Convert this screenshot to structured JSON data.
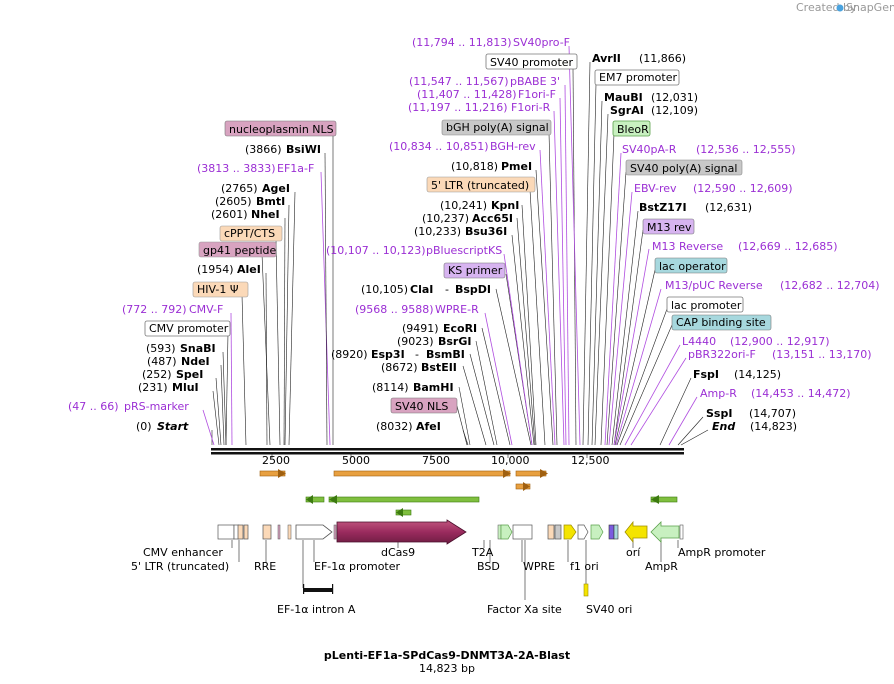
{
  "branding": {
    "credit": "Created by",
    "brand": "SnapGene"
  },
  "plasmid": {
    "name": "pLenti-EF1a-SPdCas9-DNMT3A-2A-Blast",
    "length": "14,823 bp"
  },
  "axis": {
    "ticks": [
      "2500",
      "5000",
      "7500",
      "10,000",
      "12,500"
    ]
  },
  "enzymes_left": [
    {
      "pos": "(0)",
      "name": "Start"
    },
    {
      "pos": "(231)",
      "name": "MluI"
    },
    {
      "pos": "(252)",
      "name": "SpeI"
    },
    {
      "pos": "(487)",
      "name": "NdeI"
    },
    {
      "pos": "(593)",
      "name": "SnaBI"
    },
    {
      "pos": "(1954)",
      "name": "AleI"
    },
    {
      "pos": "(2601)",
      "name": "NheI"
    },
    {
      "pos": "(2605)",
      "name": "BmtI"
    },
    {
      "pos": "(2765)",
      "name": "AgeI"
    },
    {
      "pos": "(3866)",
      "name": "BsiWI"
    }
  ],
  "enzymes_mid": [
    {
      "pos": "(8032)",
      "name": "AfeI"
    },
    {
      "pos": "(8114)",
      "name": "BamHI"
    },
    {
      "pos": "(8672)",
      "name": "BstEII"
    },
    {
      "pos": "(8920)",
      "name": "Esp3I",
      "name2": "BsmBI"
    },
    {
      "pos": "(9023)",
      "name": "BsrGI"
    },
    {
      "pos": "(9491)",
      "name": "EcoRI"
    },
    {
      "pos": "(10,105)",
      "name": "ClaI",
      "name2": "BspDI"
    },
    {
      "pos": "(10,233)",
      "name": "Bsu36I"
    },
    {
      "pos": "(10,237)",
      "name": "Acc65I"
    },
    {
      "pos": "(10,241)",
      "name": "KpnI"
    },
    {
      "pos": "(10,818)",
      "name": "PmeI"
    }
  ],
  "enzymes_right": [
    {
      "pos": "(11,866)",
      "name": "AvrII"
    },
    {
      "pos": "(12,031)",
      "name": "MauBI"
    },
    {
      "pos": "(12,109)",
      "name": "SgrAI"
    },
    {
      "pos": "(12,631)",
      "name": "BstZ17I"
    },
    {
      "pos": "(14,125)",
      "name": "FspI"
    },
    {
      "pos": "(14,707)",
      "name": "SspI"
    },
    {
      "pos": "(14,823)",
      "name": "End"
    }
  ],
  "primers": [
    {
      "range": "(47 .. 66)",
      "name": "pRS-marker"
    },
    {
      "range": "(772 .. 792)",
      "name": "CMV-F"
    },
    {
      "range": "(3813 .. 3833)",
      "name": "EF1a-F"
    },
    {
      "range": "(9568 .. 9588)",
      "name": "WPRE-R"
    },
    {
      "range": "(10,107 .. 10,123)",
      "name": "pBluescriptKS"
    },
    {
      "range": "(10,834 .. 10,851)",
      "name": "BGH-rev"
    },
    {
      "range": "(11,197 .. 11,216)",
      "name": "F1ori-R"
    },
    {
      "range": "(11,407 .. 11,428)",
      "name": "F1ori-F"
    },
    {
      "range": "(11,547 .. 11,567)",
      "name": "pBABE 3'"
    },
    {
      "range": "(11,794 .. 11,813)",
      "name": "SV40pro-F"
    },
    {
      "range": "(12,536 .. 12,555)",
      "name": "SV40pA-R"
    },
    {
      "range": "(12,590 .. 12,609)",
      "name": "EBV-rev"
    },
    {
      "range": "(12,669 .. 12,685)",
      "name": "M13 Reverse"
    },
    {
      "range": "(12,682 .. 12,704)",
      "name": "M13/pUC Reverse"
    },
    {
      "range": "(12,900 .. 12,917)",
      "name": "L4440"
    },
    {
      "range": "(13,151 .. 13,170)",
      "name": "pBR322ori-F"
    },
    {
      "range": "(14,453 .. 14,472)",
      "name": "Amp-R"
    }
  ],
  "boxed_features": {
    "nucleoplasmin_nls": "nucleoplasmin NLS",
    "cppt_cts": "cPPT/CTS",
    "gp41_peptide": "gp41 peptide",
    "hiv1_psi": "HIV-1 Ψ",
    "cmv_promoter": "CMV promoter",
    "sv40_promoter": "SV40 promoter",
    "bgh_polya": "bGH poly(A) signal",
    "ltr_truncated": "5' LTR (truncated)",
    "ks_primer": "KS primer",
    "sv40_nls": "SV40 NLS",
    "em7_promoter": "EM7 promoter",
    "bleor": "BleoR",
    "sv40_polya": "SV40 poly(A) signal",
    "m13_rev": "M13 rev",
    "lac_operator": "lac operator",
    "lac_promoter": "lac promoter",
    "cap_site": "CAP binding site"
  },
  "feature_labels": {
    "row1": [
      "CMV enhancer",
      "dCas9",
      "T2A",
      "orí",
      "AmpR promoter"
    ],
    "row2": [
      "5' LTR (truncated)",
      "RRE",
      "EF-1α promoter",
      "BSD",
      "WPRE",
      "f1 ori",
      "AmpR"
    ],
    "row3": [
      "EF-1α intron A",
      "Factor Xa site",
      "SV40 ori"
    ]
  },
  "colors": {
    "primer": "#9b2fd4",
    "dcas9": "#9a2b5e",
    "orange_orf": "#e8a040",
    "green_orf": "#7fbf3f",
    "yellow": "#f4e400",
    "pink_box": "#d8a3c0",
    "peach_box": "#fbd9b8",
    "gray_box": "#c8c8c8",
    "teal_box": "#a7d8de",
    "green_box": "#c8f0c0",
    "purple_box": "#d7b4f0"
  }
}
